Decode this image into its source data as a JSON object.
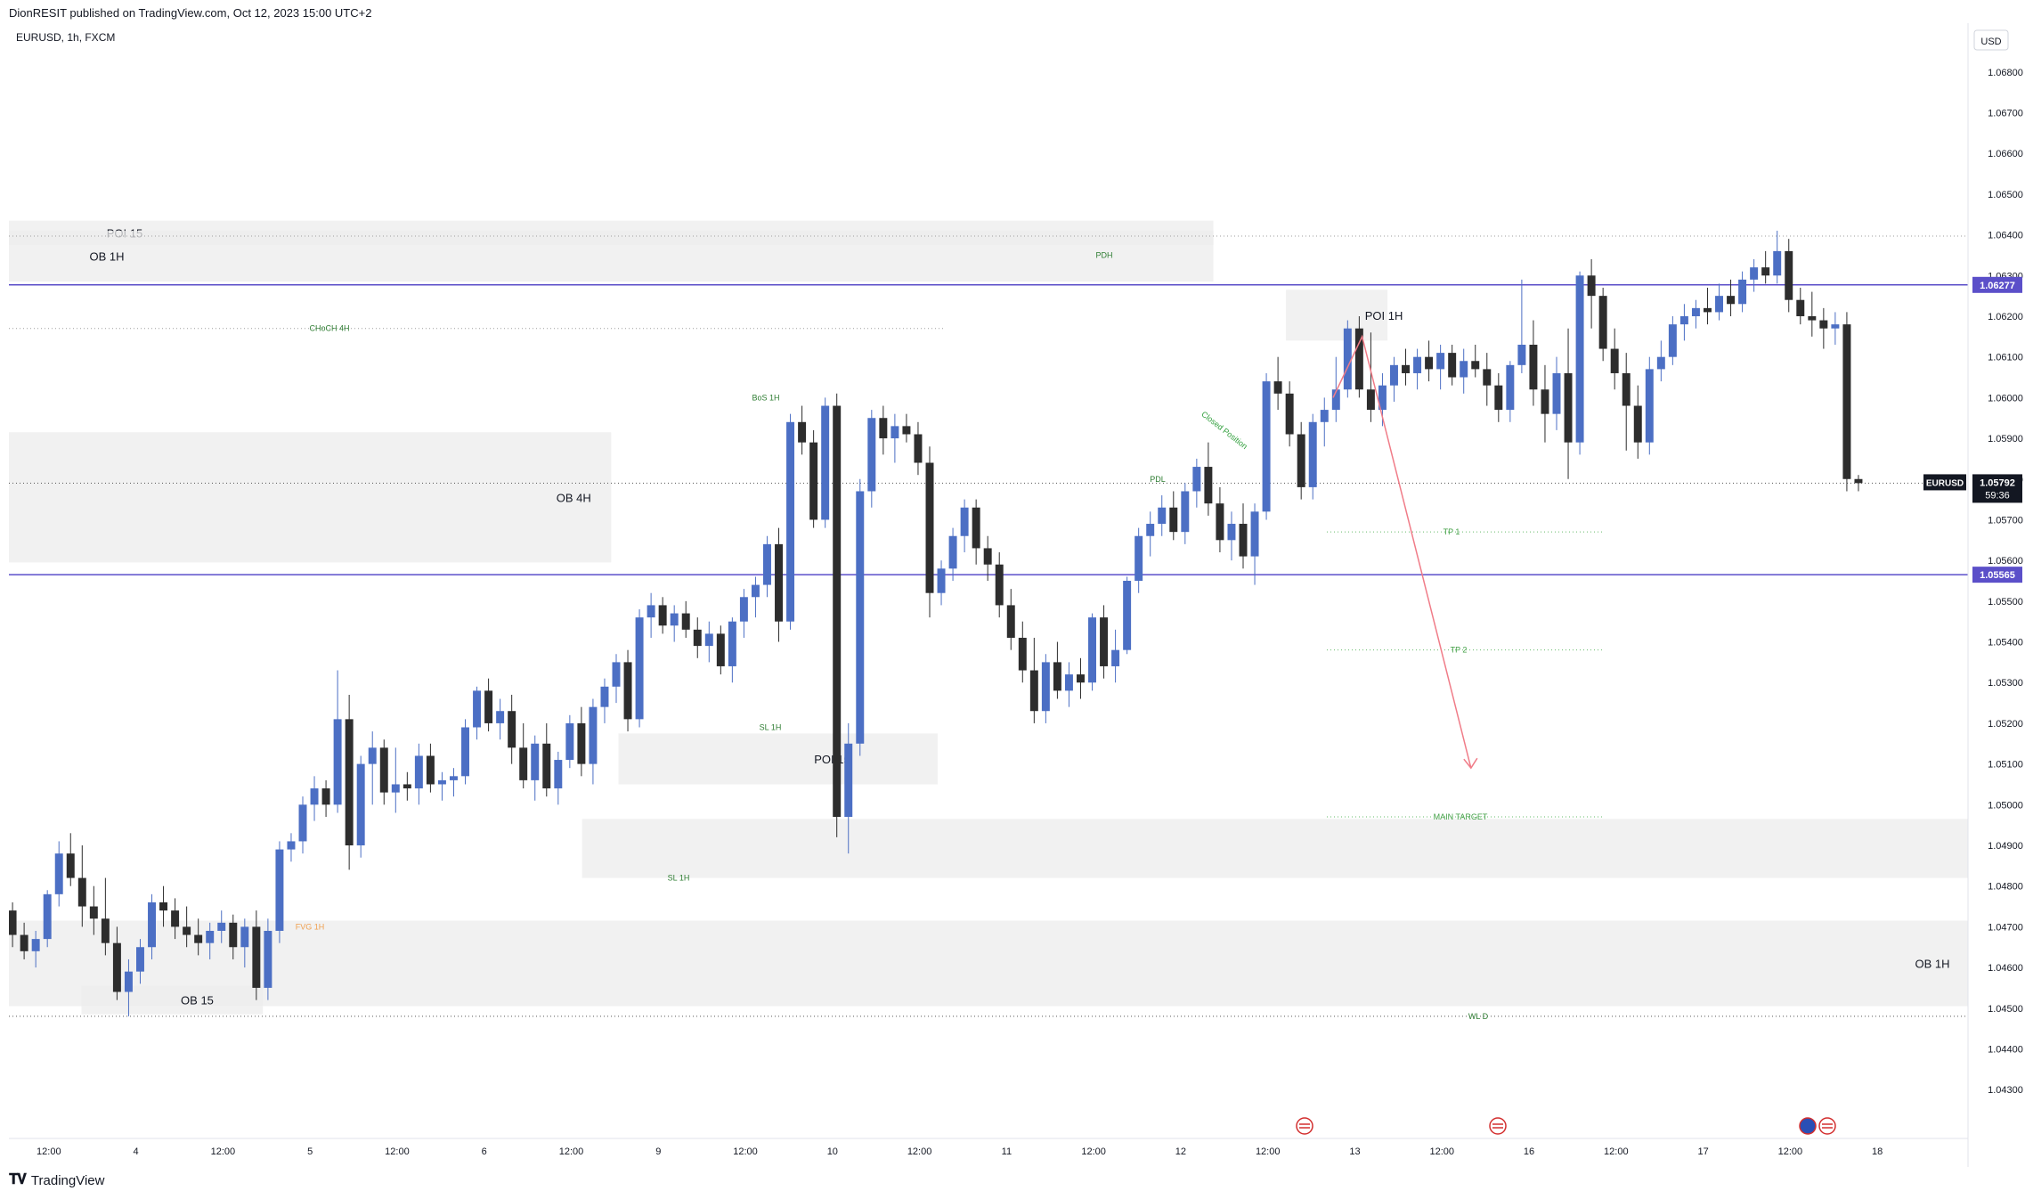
{
  "header": {
    "published": "DionRESIT published on TradingView.com, Oct 12, 2023 15:00 UTC+2"
  },
  "footer": {
    "brand": "TradingView"
  },
  "symbol_label": "EURUSD, 1h, FXCM",
  "currency_button": "USD",
  "chart_data": {
    "type": "candlestick",
    "symbol": "EURUSD",
    "interval": "1h",
    "ylim": [
      1.0418,
      1.0692
    ],
    "y_ticks": [
      1.068,
      1.067,
      1.066,
      1.065,
      1.064,
      1.063,
      1.062,
      1.061,
      1.06,
      1.059,
      1.058,
      1.057,
      1.056,
      1.055,
      1.054,
      1.053,
      1.052,
      1.051,
      1.05,
      1.049,
      1.048,
      1.047,
      1.046,
      1.045,
      1.044,
      1.043
    ],
    "y_tick_labels": [
      "1.06800",
      "1.06700",
      "1.06600",
      "1.06500",
      "1.06400",
      "1.06300",
      "1.06200",
      "1.06100",
      "1.06000",
      "1.05900",
      "1.05800",
      "1.05700",
      "1.05600",
      "1.05500",
      "1.05400",
      "1.05300",
      "1.05200",
      "1.05100",
      "1.05000",
      "1.04900",
      "1.04800",
      "1.04700",
      "1.04600",
      "1.04500",
      "1.04400",
      "1.04300"
    ],
    "x_tick_labels": [
      {
        "bar": 5,
        "label": "12:00"
      },
      {
        "bar": 17,
        "label": "4"
      },
      {
        "bar": 29,
        "label": "12:00"
      },
      {
        "bar": 41,
        "label": "5"
      },
      {
        "bar": 53,
        "label": "12:00"
      },
      {
        "bar": 65,
        "label": "6"
      },
      {
        "bar": 77,
        "label": "12:00"
      },
      {
        "bar": 89,
        "label": "9"
      },
      {
        "bar": 101,
        "label": "12:00"
      },
      {
        "bar": 113,
        "label": "10"
      },
      {
        "bar": 125,
        "label": "12:00"
      },
      {
        "bar": 137,
        "label": "11"
      },
      {
        "bar": 149,
        "label": "12:00"
      },
      {
        "bar": 161,
        "label": "12"
      },
      {
        "bar": 173,
        "label": "12:00"
      },
      {
        "bar": 185,
        "label": "13"
      },
      {
        "bar": 197,
        "label": "12:00"
      },
      {
        "bar": 209,
        "label": "16"
      },
      {
        "bar": 221,
        "label": "12:00"
      },
      {
        "bar": 233,
        "label": "17"
      },
      {
        "bar": 245,
        "label": "12:00"
      },
      {
        "bar": 257,
        "label": "18"
      }
    ],
    "bars_visible": 270,
    "candles": [
      [
        1.0474,
        1.0476,
        1.0465,
        1.0468
      ],
      [
        1.0468,
        1.0471,
        1.0462,
        1.0464
      ],
      [
        1.0464,
        1.0469,
        1.046,
        1.0467
      ],
      [
        1.0467,
        1.0479,
        1.0465,
        1.0478
      ],
      [
        1.0478,
        1.0491,
        1.0475,
        1.0488
      ],
      [
        1.0488,
        1.0493,
        1.048,
        1.0482
      ],
      [
        1.0482,
        1.049,
        1.047,
        1.0475
      ],
      [
        1.0475,
        1.048,
        1.0468,
        1.0472
      ],
      [
        1.0472,
        1.0482,
        1.0463,
        1.0466
      ],
      [
        1.0466,
        1.047,
        1.0452,
        1.0454
      ],
      [
        1.0454,
        1.0462,
        1.0448,
        1.0459
      ],
      [
        1.0459,
        1.0467,
        1.0456,
        1.0465
      ],
      [
        1.0465,
        1.0478,
        1.0462,
        1.0476
      ],
      [
        1.0476,
        1.048,
        1.047,
        1.0474
      ],
      [
        1.0474,
        1.0477,
        1.0467,
        1.047
      ],
      [
        1.047,
        1.0475,
        1.0465,
        1.0468
      ],
      [
        1.0468,
        1.0472,
        1.0463,
        1.0466
      ],
      [
        1.0466,
        1.0471,
        1.0462,
        1.0469
      ],
      [
        1.0469,
        1.0474,
        1.0466,
        1.0471
      ],
      [
        1.0471,
        1.0473,
        1.0462,
        1.0465
      ],
      [
        1.0465,
        1.0472,
        1.046,
        1.047
      ],
      [
        1.047,
        1.0474,
        1.0452,
        1.0455
      ],
      [
        1.0455,
        1.0472,
        1.0452,
        1.0469
      ],
      [
        1.0469,
        1.0491,
        1.0466,
        1.0489
      ],
      [
        1.0489,
        1.0493,
        1.0486,
        1.0491
      ],
      [
        1.0491,
        1.0502,
        1.0488,
        1.05
      ],
      [
        1.05,
        1.0507,
        1.0496,
        1.0504
      ],
      [
        1.0504,
        1.0506,
        1.0497,
        1.05
      ],
      [
        1.05,
        1.0533,
        1.0498,
        1.0521
      ],
      [
        1.0521,
        1.0527,
        1.0484,
        1.049
      ],
      [
        1.049,
        1.0512,
        1.0487,
        1.051
      ],
      [
        1.051,
        1.0518,
        1.05,
        1.0514
      ],
      [
        1.0514,
        1.0516,
        1.05,
        1.0503
      ],
      [
        1.0503,
        1.0514,
        1.0498,
        1.0505
      ],
      [
        1.0505,
        1.0508,
        1.0501,
        1.0504
      ],
      [
        1.0504,
        1.0515,
        1.05,
        1.0512
      ],
      [
        1.0512,
        1.0515,
        1.0503,
        1.0505
      ],
      [
        1.0505,
        1.0508,
        1.0501,
        1.0506
      ],
      [
        1.0506,
        1.0509,
        1.0502,
        1.0507
      ],
      [
        1.0507,
        1.0521,
        1.0505,
        1.0519
      ],
      [
        1.0519,
        1.0529,
        1.0516,
        1.0528
      ],
      [
        1.0528,
        1.0531,
        1.0518,
        1.052
      ],
      [
        1.052,
        1.0526,
        1.0516,
        1.0523
      ],
      [
        1.0523,
        1.0527,
        1.051,
        1.0514
      ],
      [
        1.0514,
        1.052,
        1.0504,
        1.0506
      ],
      [
        1.0506,
        1.0517,
        1.0501,
        1.0515
      ],
      [
        1.0515,
        1.052,
        1.0502,
        1.0504
      ],
      [
        1.0504,
        1.0513,
        1.05,
        1.0511
      ],
      [
        1.0511,
        1.0522,
        1.0509,
        1.052
      ],
      [
        1.052,
        1.0524,
        1.0507,
        1.051
      ],
      [
        1.051,
        1.0526,
        1.0505,
        1.0524
      ],
      [
        1.0524,
        1.0531,
        1.052,
        1.0529
      ],
      [
        1.0529,
        1.0537,
        1.0525,
        1.0535
      ],
      [
        1.0535,
        1.0538,
        1.0518,
        1.0521
      ],
      [
        1.0521,
        1.0548,
        1.0519,
        1.0546
      ],
      [
        1.0546,
        1.0552,
        1.0541,
        1.0549
      ],
      [
        1.0549,
        1.0551,
        1.0542,
        1.0544
      ],
      [
        1.0544,
        1.0549,
        1.054,
        1.0547
      ],
      [
        1.0547,
        1.055,
        1.0541,
        1.0543
      ],
      [
        1.0543,
        1.0546,
        1.0536,
        1.0539
      ],
      [
        1.0539,
        1.0545,
        1.0535,
        1.0542
      ],
      [
        1.0542,
        1.0544,
        1.0532,
        1.0534
      ],
      [
        1.0534,
        1.0546,
        1.053,
        1.0545
      ],
      [
        1.0545,
        1.0553,
        1.0541,
        1.0551
      ],
      [
        1.0551,
        1.0556,
        1.0546,
        1.0554
      ],
      [
        1.0554,
        1.0566,
        1.0551,
        1.0564
      ],
      [
        1.0564,
        1.0568,
        1.054,
        1.0545
      ],
      [
        1.0545,
        1.0596,
        1.0543,
        1.0594
      ],
      [
        1.0594,
        1.0598,
        1.0586,
        1.0589
      ],
      [
        1.0589,
        1.0592,
        1.0568,
        1.057
      ],
      [
        1.057,
        1.06,
        1.0568,
        1.0598
      ],
      [
        1.0598,
        1.0601,
        1.0492,
        1.0497
      ],
      [
        1.0497,
        1.052,
        1.0488,
        1.0515
      ],
      [
        1.0515,
        1.058,
        1.0512,
        1.0577
      ],
      [
        1.0577,
        1.0597,
        1.0573,
        1.0595
      ],
      [
        1.0595,
        1.0598,
        1.0586,
        1.059
      ],
      [
        1.059,
        1.0596,
        1.0584,
        1.0593
      ],
      [
        1.0593,
        1.0596,
        1.0589,
        1.0591
      ],
      [
        1.0591,
        1.0594,
        1.0581,
        1.0584
      ],
      [
        1.0584,
        1.0588,
        1.0546,
        1.0552
      ],
      [
        1.0552,
        1.056,
        1.0549,
        1.0558
      ],
      [
        1.0558,
        1.0568,
        1.0555,
        1.0566
      ],
      [
        1.0566,
        1.0575,
        1.0562,
        1.0573
      ],
      [
        1.0573,
        1.0575,
        1.0559,
        1.0563
      ],
      [
        1.0563,
        1.0566,
        1.0555,
        1.0559
      ],
      [
        1.0559,
        1.0562,
        1.0546,
        1.0549
      ],
      [
        1.0549,
        1.0553,
        1.0538,
        1.0541
      ],
      [
        1.0541,
        1.0545,
        1.053,
        1.0533
      ],
      [
        1.0533,
        1.0541,
        1.052,
        1.0523
      ],
      [
        1.0523,
        1.0537,
        1.052,
        1.0535
      ],
      [
        1.0535,
        1.054,
        1.0526,
        1.0528
      ],
      [
        1.0528,
        1.0535,
        1.0524,
        1.0532
      ],
      [
        1.0532,
        1.0536,
        1.0526,
        1.053
      ],
      [
        1.053,
        1.0547,
        1.0528,
        1.0546
      ],
      [
        1.0546,
        1.0549,
        1.0531,
        1.0534
      ],
      [
        1.0534,
        1.0543,
        1.053,
        1.0538
      ],
      [
        1.0538,
        1.0556,
        1.0537,
        1.0555
      ],
      [
        1.0555,
        1.0568,
        1.0552,
        1.0566
      ],
      [
        1.0566,
        1.0572,
        1.0561,
        1.0569
      ],
      [
        1.0569,
        1.0576,
        1.0566,
        1.0573
      ],
      [
        1.0573,
        1.0577,
        1.0565,
        1.0567
      ],
      [
        1.0567,
        1.0579,
        1.0564,
        1.0577
      ],
      [
        1.0577,
        1.0585,
        1.0573,
        1.0583
      ],
      [
        1.0583,
        1.0589,
        1.0571,
        1.0574
      ],
      [
        1.0574,
        1.0578,
        1.0562,
        1.0565
      ],
      [
        1.0565,
        1.0572,
        1.056,
        1.0569
      ],
      [
        1.0569,
        1.0574,
        1.0558,
        1.0561
      ],
      [
        1.0561,
        1.0574,
        1.0554,
        1.0572
      ],
      [
        1.0572,
        1.0606,
        1.057,
        1.0604
      ],
      [
        1.0604,
        1.061,
        1.0597,
        1.0601
      ],
      [
        1.0601,
        1.0604,
        1.0588,
        1.0591
      ],
      [
        1.0591,
        1.0594,
        1.0575,
        1.0578
      ],
      [
        1.0578,
        1.0596,
        1.0575,
        1.0594
      ],
      [
        1.0594,
        1.06,
        1.0588,
        1.0597
      ],
      [
        1.0597,
        1.061,
        1.0594,
        1.0602
      ],
      [
        1.0602,
        1.0619,
        1.06,
        1.0617
      ],
      [
        1.0617,
        1.062,
        1.06,
        1.0602
      ],
      [
        1.0602,
        1.0616,
        1.0594,
        1.0597
      ],
      [
        1.0597,
        1.0606,
        1.0593,
        1.0603
      ],
      [
        1.0603,
        1.061,
        1.0599,
        1.0608
      ],
      [
        1.0608,
        1.0612,
        1.0603,
        1.0606
      ],
      [
        1.0606,
        1.0612,
        1.0602,
        1.061
      ],
      [
        1.061,
        1.0614,
        1.0604,
        1.0607
      ],
      [
        1.0607,
        1.0613,
        1.0602,
        1.0611
      ],
      [
        1.0611,
        1.0613,
        1.0603,
        1.0605
      ],
      [
        1.0605,
        1.0612,
        1.0601,
        1.0609
      ],
      [
        1.0609,
        1.0613,
        1.0605,
        1.0607
      ],
      [
        1.0607,
        1.0611,
        1.0598,
        1.0603
      ],
      [
        1.0603,
        1.0606,
        1.0594,
        1.0597
      ],
      [
        1.0597,
        1.0609,
        1.0594,
        1.0608
      ],
      [
        1.0608,
        1.0629,
        1.0606,
        1.0613
      ],
      [
        1.0613,
        1.0619,
        1.0598,
        1.0602
      ],
      [
        1.0602,
        1.0608,
        1.0589,
        1.0596
      ],
      [
        1.0596,
        1.061,
        1.0592,
        1.0606
      ],
      [
        1.0606,
        1.0617,
        1.058,
        1.0589
      ],
      [
        1.0589,
        1.0631,
        1.0586,
        1.063
      ],
      [
        1.063,
        1.0634,
        1.0617,
        1.0625
      ],
      [
        1.0625,
        1.0627,
        1.0609,
        1.0612
      ],
      [
        1.0612,
        1.0617,
        1.0602,
        1.0606
      ],
      [
        1.0606,
        1.0611,
        1.0587,
        1.0598
      ],
      [
        1.0598,
        1.0603,
        1.0585,
        1.0589
      ],
      [
        1.0589,
        1.061,
        1.0586,
        1.0607
      ],
      [
        1.0607,
        1.0614,
        1.0604,
        1.061
      ],
      [
        1.061,
        1.062,
        1.0608,
        1.0618
      ],
      [
        1.0618,
        1.0623,
        1.0614,
        1.062
      ],
      [
        1.062,
        1.0624,
        1.0617,
        1.0622
      ],
      [
        1.0622,
        1.0627,
        1.0618,
        1.0621
      ],
      [
        1.0621,
        1.0628,
        1.0619,
        1.0625
      ],
      [
        1.0625,
        1.0629,
        1.062,
        1.0623
      ],
      [
        1.0623,
        1.0631,
        1.0621,
        1.0629
      ],
      [
        1.0629,
        1.0634,
        1.0626,
        1.0632
      ],
      [
        1.0632,
        1.0636,
        1.0628,
        1.063
      ],
      [
        1.063,
        1.0641,
        1.0628,
        1.0636
      ],
      [
        1.0636,
        1.0639,
        1.0621,
        1.0624
      ],
      [
        1.0624,
        1.0627,
        1.0618,
        1.062
      ],
      [
        1.062,
        1.0626,
        1.0615,
        1.0619
      ],
      [
        1.0619,
        1.0622,
        1.0612,
        1.0617
      ],
      [
        1.0617,
        1.0621,
        1.0613,
        1.0618
      ],
      [
        1.0618,
        1.0621,
        1.0577,
        1.058
      ],
      [
        1.058,
        1.0581,
        1.0577,
        1.0579
      ]
    ],
    "candle_start_bar": 0,
    "candle_step_bars": 1.6,
    "current_price": "1.05792",
    "countdown": "59:36",
    "horizontal_levels": [
      {
        "price": 1.06277,
        "label": "1.06277",
        "color": "#5b4fc9"
      },
      {
        "price": 1.05565,
        "label": "1.05565",
        "color": "#5b4fc9"
      }
    ],
    "zones": [
      {
        "label": "POI 15",
        "p_top": 1.06435,
        "p_bot": 1.06375,
        "x0": 0,
        "x1": 166
      },
      {
        "label": "OB 1H",
        "p_top": 1.0641,
        "p_bot": 1.06285,
        "x0": 0,
        "x1": 166
      },
      {
        "label": "OB 4H",
        "p_top": 1.05915,
        "p_bot": 1.05595,
        "x0": 0,
        "x1": 83
      },
      {
        "label": "POI 15",
        "p_top": 1.05175,
        "p_bot": 1.0505,
        "x0": 84,
        "x1": 128
      },
      {
        "label": "",
        "p_top": 1.04965,
        "p_bot": 1.0482,
        "x0": 79,
        "x1": 270
      },
      {
        "label": "OB 1H",
        "p_top": 1.04715,
        "p_bot": 1.04505,
        "x0": 0,
        "x1": 270
      },
      {
        "label": "POI 1H",
        "p_top": 1.06265,
        "p_bot": 1.0614,
        "x0": 176,
        "x1": 190
      },
      {
        "label": "OB 15",
        "p_top": 1.04555,
        "p_bot": 1.04485,
        "x0": 10,
        "x1": 35
      }
    ],
    "annotations": [
      {
        "text": "CHoCH 4H",
        "color": "#2e7d32",
        "price": 1.0617
      },
      {
        "text": "BoS 1H",
        "color": "#2e7d32",
        "price": 1.06
      },
      {
        "text": "PDH",
        "color": "#2e7d32",
        "price": 1.0635
      },
      {
        "text": "PDL",
        "color": "#2e7d32",
        "price": 1.058
      },
      {
        "text": "SL 1H",
        "color": "#2e7d32",
        "price": 1.0519
      },
      {
        "text": "SL 1H",
        "color": "#2e7d32",
        "price": 1.0482
      },
      {
        "text": "TP 1",
        "color": "#43a047",
        "price": 1.0567
      },
      {
        "text": "TP 2",
        "color": "#43a047",
        "price": 1.0538
      },
      {
        "text": "MAIN TARGET",
        "color": "#43a047",
        "price": 1.0497
      },
      {
        "text": "WL D",
        "color": "#2e7d32",
        "price": 1.0448
      },
      {
        "text": "FVG 1H",
        "color": "#f0a050",
        "price": 1.047
      },
      {
        "text": "Closed Position",
        "color": "#2e9e3a",
        "price": 1.0592
      }
    ],
    "projection_path": [
      [
        182,
        1.06
      ],
      [
        186,
        1.0615
      ],
      [
        201,
        1.0509
      ]
    ],
    "colors": {
      "up": "#4c6fc4",
      "down": "#2d2d2d",
      "zone": "#ececec",
      "level": "#5b4fc9",
      "projection": "#f07c88",
      "axis_text": "#131722"
    },
    "event_icons": [
      "us-flag-icon",
      "us-flag-icon",
      "eu-flag-icon",
      "us-flag-icon"
    ]
  }
}
